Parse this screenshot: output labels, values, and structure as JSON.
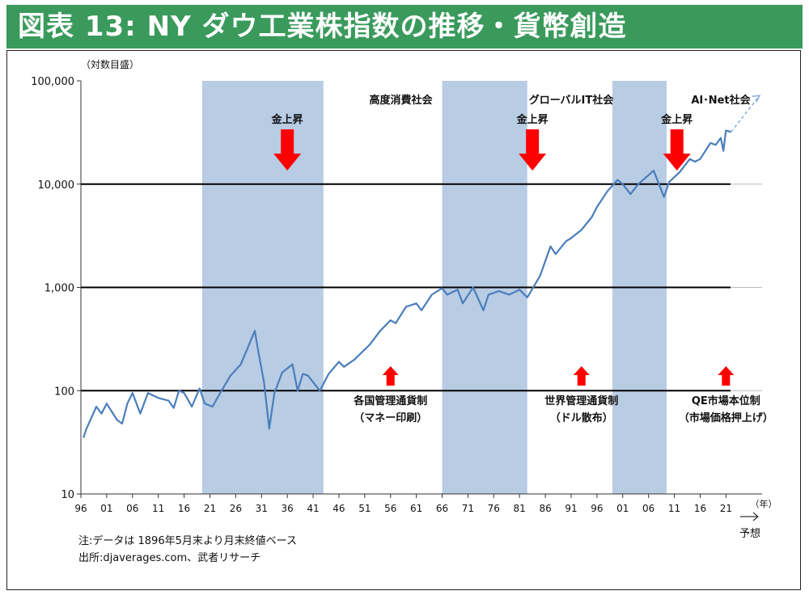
{
  "title": "図表 13: NY ダウ工業株指数の推移・貨幣創造",
  "chart_data": {
    "type": "line",
    "title": "図表 13: NY ダウ工業株指数の推移・貨幣創造",
    "ylabel": "（対数目盛）",
    "xlabel_unit": "（年）",
    "forecast_label": "予想",
    "y_scale": "log",
    "ylim": [
      10,
      100000
    ],
    "y_ticks": [
      {
        "value": 10,
        "label": "10"
      },
      {
        "value": 100,
        "label": "100"
      },
      {
        "value": 1000,
        "label": "1,000"
      },
      {
        "value": 10000,
        "label": "10,000"
      },
      {
        "value": 100000,
        "label": "100,000"
      }
    ],
    "xlim": [
      1896,
      2028
    ],
    "x_ticks": [
      {
        "year": 1896,
        "label": "96"
      },
      {
        "year": 1901,
        "label": "01"
      },
      {
        "year": 1906,
        "label": "06"
      },
      {
        "year": 1911,
        "label": "11"
      },
      {
        "year": 1916,
        "label": "16"
      },
      {
        "year": 1921,
        "label": "21"
      },
      {
        "year": 1926,
        "label": "26"
      },
      {
        "year": 1931,
        "label": "31"
      },
      {
        "year": 1936,
        "label": "36"
      },
      {
        "year": 1941,
        "label": "41"
      },
      {
        "year": 1946,
        "label": "46"
      },
      {
        "year": 1951,
        "label": "51"
      },
      {
        "year": 1956,
        "label": "56"
      },
      {
        "year": 1961,
        "label": "61"
      },
      {
        "year": 1966,
        "label": "66"
      },
      {
        "year": 1971,
        "label": "71"
      },
      {
        "year": 1976,
        "label": "76"
      },
      {
        "year": 1981,
        "label": "81"
      },
      {
        "year": 1986,
        "label": "86"
      },
      {
        "year": 1991,
        "label": "91"
      },
      {
        "year": 1996,
        "label": "96"
      },
      {
        "year": 2001,
        "label": "01"
      },
      {
        "year": 2006,
        "label": "06"
      },
      {
        "year": 2011,
        "label": "11"
      },
      {
        "year": 2016,
        "label": "16"
      },
      {
        "year": 2021,
        "label": "21"
      }
    ],
    "reference_lines": [
      100,
      1000,
      10000
    ],
    "shaded_periods": [
      {
        "start": 1919.5,
        "end": 1943
      },
      {
        "start": 1966,
        "end": 1982.5
      },
      {
        "start": 1999,
        "end": 2009.5
      }
    ],
    "eras": [
      {
        "label": "高度消費社会",
        "year": 1958
      },
      {
        "label": "グローバルIT社会",
        "year": 1991
      },
      {
        "label": "AI･Net社会",
        "year": 2020
      }
    ],
    "gold_rise_label": "金上昇",
    "gold_rise_years": [
      1936,
      1983.5,
      2011.5
    ],
    "events": [
      {
        "line1": "各国管理通貨制",
        "line2": "（マネー印刷）",
        "year": 1956
      },
      {
        "line1": "世界管理通貨制",
        "line2": "（ドル散布）",
        "year": 1993
      },
      {
        "line1": "QE市場本位制",
        "line2": "（市場価格押上げ）",
        "year": 2021
      }
    ],
    "series": [
      {
        "x": [
          1896.5,
          1897,
          1899,
          1900,
          1901,
          1903,
          1904,
          1905,
          1906,
          1907.5,
          1909,
          1911,
          1913,
          1914,
          1915,
          1916,
          1917.5,
          1919,
          1920,
          1921.5,
          1923,
          1925,
          1927,
          1929.7,
          1930.5,
          1931.5,
          1932.5,
          1933.5,
          1935,
          1937,
          1938,
          1939,
          1940,
          1942.3,
          1944,
          1946,
          1947,
          1949,
          1952,
          1954,
          1956,
          1957,
          1959,
          1961,
          1962,
          1964,
          1966,
          1967,
          1969,
          1970,
          1972,
          1974,
          1975,
          1977,
          1979,
          1981,
          1982.5,
          1985,
          1987,
          1988,
          1990,
          1991,
          1993,
          1995,
          1996,
          1998,
          2000,
          2001,
          2002.5,
          2004,
          2007,
          2009,
          2010,
          2012,
          2014,
          2015,
          2016,
          2018,
          2019,
          2020,
          2020.5,
          2021,
          2022
        ],
        "y": [
          35,
          42,
          70,
          60,
          75,
          52,
          48,
          75,
          95,
          60,
          95,
          85,
          80,
          68,
          100,
          95,
          70,
          105,
          75,
          70,
          95,
          140,
          180,
          380,
          220,
          120,
          43,
          95,
          150,
          180,
          100,
          145,
          140,
          100,
          145,
          190,
          170,
          200,
          280,
          380,
          480,
          450,
          650,
          700,
          600,
          850,
          980,
          850,
          950,
          700,
          1000,
          600,
          850,
          920,
          850,
          950,
          800,
          1300,
          2500,
          2100,
          2800,
          3000,
          3600,
          4800,
          6000,
          8500,
          11000,
          10000,
          8000,
          10000,
          13500,
          7500,
          10500,
          13000,
          17500,
          16500,
          17500,
          25000,
          24000,
          28000,
          21000,
          33000,
          32000
        ]
      }
    ],
    "forecast": {
      "x": [
        2022,
        2027.5
      ],
      "y": [
        32000,
        72000
      ]
    },
    "notes": [
      "注:データは 1896年5月末より月末終値ベース",
      "出所:djaverages.com、武者リサーチ"
    ]
  }
}
